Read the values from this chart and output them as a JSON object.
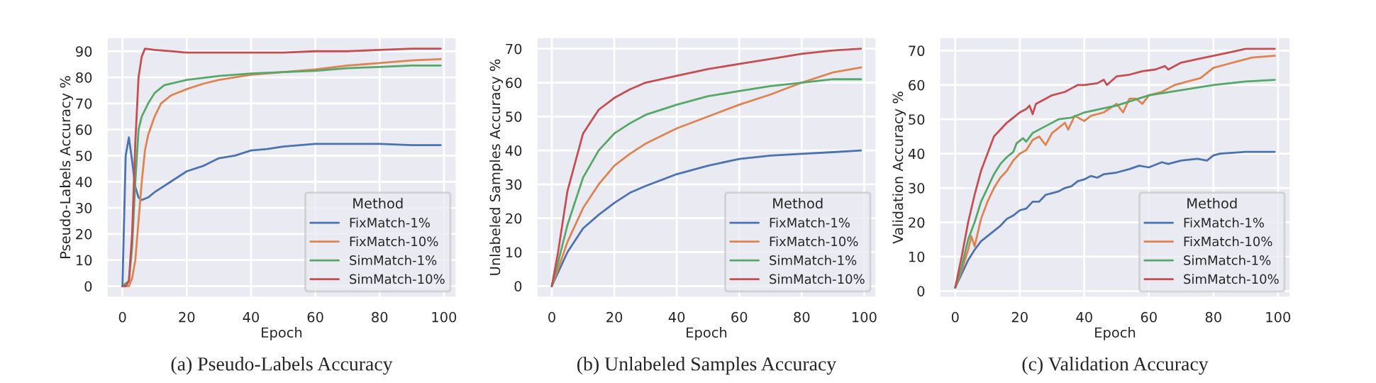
{
  "chart_data": [
    {
      "type": "line",
      "xlabel": "Epoch",
      "ylabel": "Pseudo-Labels Accuracy %",
      "legend_title": "Method",
      "legend": "bottom right",
      "grid": true,
      "xlim": [
        -5,
        104
      ],
      "xticks": [
        0,
        20,
        40,
        60,
        80,
        100
      ],
      "ylim": [
        -4.5,
        95.5
      ],
      "yticks": [
        0,
        10,
        20,
        30,
        40,
        50,
        60,
        70,
        80,
        90
      ],
      "annotations": [
        "(a) Pseudo-Labels Accuracy"
      ],
      "series": [
        {
          "name": "FixMatch-1%",
          "color": "#4c72b0",
          "x": [
            0,
            1,
            2,
            3,
            4,
            5,
            6,
            8,
            10,
            15,
            20,
            25,
            30,
            35,
            40,
            45,
            50,
            60,
            70,
            80,
            90,
            99
          ],
          "values": [
            0,
            50,
            57,
            48,
            38,
            34,
            33,
            34,
            36,
            40,
            44,
            46,
            49,
            50,
            52,
            52.5,
            53.5,
            54.5,
            54.5,
            54.5,
            54,
            54
          ]
        },
        {
          "name": "FixMatch-10%",
          "color": "#dd8452",
          "x": [
            0,
            2,
            3,
            4,
            5,
            6,
            7,
            8,
            10,
            12,
            15,
            20,
            25,
            30,
            40,
            50,
            60,
            70,
            80,
            90,
            99
          ],
          "values": [
            0,
            0,
            3,
            10,
            25,
            40,
            52,
            58,
            65,
            70,
            73,
            75.5,
            77.5,
            79,
            81,
            82,
            83,
            84.5,
            85.5,
            86.5,
            87
          ]
        },
        {
          "name": "SimMatch-1%",
          "color": "#55a868",
          "x": [
            0,
            2,
            3,
            4,
            5,
            6,
            8,
            10,
            13,
            20,
            30,
            40,
            50,
            60,
            70,
            80,
            90,
            99
          ],
          "values": [
            0,
            2,
            15,
            40,
            60,
            65,
            70,
            74,
            77,
            79,
            80.5,
            81.5,
            82,
            82.5,
            83.5,
            84,
            84.5,
            84.5
          ]
        },
        {
          "name": "SimMatch-10%",
          "color": "#c44e52",
          "x": [
            0,
            1,
            2,
            3,
            4,
            5,
            6,
            7,
            10,
            15,
            20,
            30,
            40,
            50,
            60,
            70,
            80,
            90,
            99
          ],
          "values": [
            0,
            0,
            2,
            20,
            55,
            80,
            88,
            91,
            90.5,
            90,
            89.5,
            89.5,
            89.5,
            89.5,
            90,
            90,
            90.5,
            91,
            91
          ]
        }
      ]
    },
    {
      "type": "line",
      "xlabel": "Epoch",
      "ylabel": "Unlabeled Samples Accuracy %",
      "legend_title": "Method",
      "legend": "bottom right",
      "grid": true,
      "xlim": [
        -5,
        104
      ],
      "xticks": [
        0,
        20,
        40,
        60,
        80,
        100
      ],
      "ylim": [
        -3.5,
        73.5
      ],
      "yticks": [
        0,
        10,
        20,
        30,
        40,
        50,
        60,
        70
      ],
      "annotations": [
        "(b) Unlabeled Samples Accuracy"
      ],
      "series": [
        {
          "name": "FixMatch-1%",
          "color": "#4c72b0",
          "x": [
            0,
            2,
            5,
            10,
            15,
            20,
            25,
            30,
            40,
            50,
            60,
            70,
            80,
            90,
            99
          ],
          "values": [
            0,
            4,
            10,
            17,
            21,
            24.5,
            27.5,
            29.5,
            33,
            35.5,
            37.5,
            38.5,
            39,
            39.5,
            40
          ]
        },
        {
          "name": "FixMatch-10%",
          "color": "#dd8452",
          "x": [
            0,
            2,
            5,
            10,
            15,
            20,
            25,
            30,
            40,
            50,
            60,
            70,
            80,
            90,
            99
          ],
          "values": [
            0,
            5,
            13,
            23,
            30,
            35.5,
            39,
            42,
            46.5,
            50,
            53.5,
            56.5,
            60,
            63,
            64.5
          ]
        },
        {
          "name": "SimMatch-1%",
          "color": "#55a868",
          "x": [
            0,
            2,
            5,
            10,
            15,
            20,
            25,
            30,
            40,
            50,
            60,
            70,
            80,
            90,
            99
          ],
          "values": [
            0,
            7,
            18,
            32,
            40,
            45,
            48,
            50.5,
            53.5,
            56,
            57.5,
            59,
            60,
            61,
            61
          ]
        },
        {
          "name": "SimMatch-10%",
          "color": "#c44e52",
          "x": [
            0,
            2,
            5,
            10,
            15,
            20,
            25,
            30,
            40,
            50,
            60,
            70,
            80,
            90,
            99
          ],
          "values": [
            0,
            10,
            28,
            45,
            52,
            55.5,
            58,
            60,
            62,
            64,
            65.5,
            67,
            68.5,
            69.5,
            70
          ]
        }
      ]
    },
    {
      "type": "line",
      "xlabel": "Epoch",
      "ylabel": "Validation Accuracy %",
      "legend_title": "Method",
      "legend": "bottom right",
      "grid": true,
      "xlim": [
        -5,
        104
      ],
      "xticks": [
        0,
        20,
        40,
        60,
        80,
        100
      ],
      "ylim": [
        -2,
        74
      ],
      "yticks": [
        0,
        10,
        20,
        30,
        40,
        50,
        60,
        70
      ],
      "annotations": [
        "(c) Validation Accuracy"
      ],
      "series": [
        {
          "name": "FixMatch-1%",
          "color": "#4c72b0",
          "x": [
            0,
            2,
            4,
            6,
            8,
            10,
            12,
            14,
            16,
            18,
            20,
            22,
            24,
            26,
            28,
            30,
            32,
            34,
            36,
            38,
            40,
            42,
            44,
            46,
            50,
            54,
            57,
            60,
            64,
            66,
            70,
            75,
            78,
            80,
            82,
            90,
            99
          ],
          "values": [
            1,
            5,
            9,
            12,
            14.5,
            16,
            17.5,
            19,
            21,
            22,
            23.5,
            24,
            26,
            26,
            28,
            28.5,
            29,
            30,
            30.5,
            32,
            32.5,
            33.5,
            33,
            34,
            34.5,
            35.5,
            36.5,
            36,
            37.5,
            37,
            38,
            38.5,
            38,
            39.5,
            40,
            40.5,
            40.5
          ]
        },
        {
          "name": "FixMatch-10%",
          "color": "#dd8452",
          "x": [
            0,
            2,
            4,
            5,
            6,
            7,
            8,
            10,
            12,
            14,
            16,
            18,
            20,
            22,
            24,
            26,
            28,
            30,
            32,
            34,
            35,
            37,
            40,
            42,
            46,
            50,
            52,
            54,
            56,
            58,
            60,
            64,
            68,
            72,
            76,
            80,
            84,
            88,
            92,
            99
          ],
          "values": [
            1,
            6,
            12,
            16,
            13,
            17,
            21,
            26,
            30,
            33,
            35,
            38,
            40,
            41,
            44,
            45,
            42.5,
            46,
            47.5,
            49,
            47,
            51,
            49.5,
            51,
            52,
            54.5,
            52,
            56,
            56,
            54.5,
            57,
            58,
            60,
            61,
            62,
            65,
            66,
            67,
            68,
            68.5
          ]
        },
        {
          "name": "SimMatch-1%",
          "color": "#55a868",
          "x": [
            0,
            2,
            4,
            6,
            8,
            10,
            12,
            14,
            16,
            18,
            19,
            21,
            22,
            24,
            28,
            32,
            36,
            40,
            45,
            50,
            55,
            60,
            70,
            80,
            90,
            99
          ],
          "values": [
            1,
            7,
            15,
            20,
            26,
            30,
            34,
            37,
            39,
            40.5,
            43,
            44.5,
            43.5,
            46,
            48,
            50,
            50.5,
            52,
            53,
            54,
            55.5,
            57,
            58.5,
            60,
            61,
            61.5
          ]
        },
        {
          "name": "SimMatch-10%",
          "color": "#c44e52",
          "x": [
            0,
            2,
            4,
            6,
            8,
            10,
            12,
            14,
            16,
            18,
            20,
            22,
            23,
            24,
            25,
            28,
            30,
            34,
            36,
            38,
            40,
            44,
            46,
            47,
            50,
            54,
            58,
            62,
            65,
            66,
            70,
            75,
            80,
            85,
            90,
            99
          ],
          "values": [
            1,
            10,
            20,
            28,
            35,
            40,
            45,
            47,
            49,
            50.5,
            52,
            53,
            54,
            51.5,
            54.5,
            56,
            57,
            58,
            59,
            60,
            60,
            60.5,
            61.5,
            60,
            62.5,
            63,
            64,
            64.5,
            65.5,
            64.5,
            66.5,
            67.5,
            68.5,
            69.5,
            70.5,
            70.5
          ]
        }
      ]
    }
  ]
}
